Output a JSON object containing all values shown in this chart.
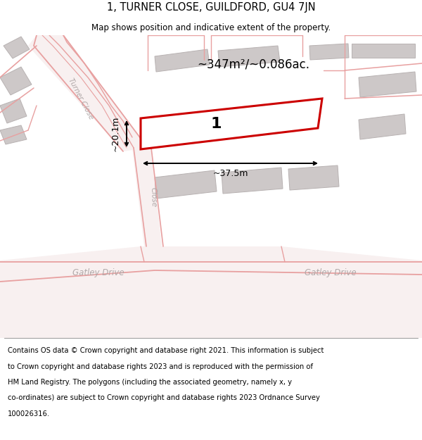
{
  "title": "1, TURNER CLOSE, GUILDFORD, GU4 7JN",
  "subtitle": "Map shows position and indicative extent of the property.",
  "footer_lines": [
    "Contains OS data © Crown copyright and database right 2021. This information is subject",
    "to Crown copyright and database rights 2023 and is reproduced with the permission of",
    "HM Land Registry. The polygons (including the associated geometry, namely x, y",
    "co-ordinates) are subject to Crown copyright and database rights 2023 Ordnance Survey",
    "100026316."
  ],
  "area_label": "~347m²/~0.086ac.",
  "plot_number": "1",
  "width_label": "~37.5m",
  "height_label": "~20.1m",
  "red_color": "#cc0000",
  "map_bg": "#f2eeed",
  "building_fc": "#cdc8c8",
  "building_ec": "#b8b2b2",
  "road_line_color": "#e8a0a0",
  "road_label_color": "#b0a8a8",
  "white": "#ffffff",
  "black": "#000000"
}
